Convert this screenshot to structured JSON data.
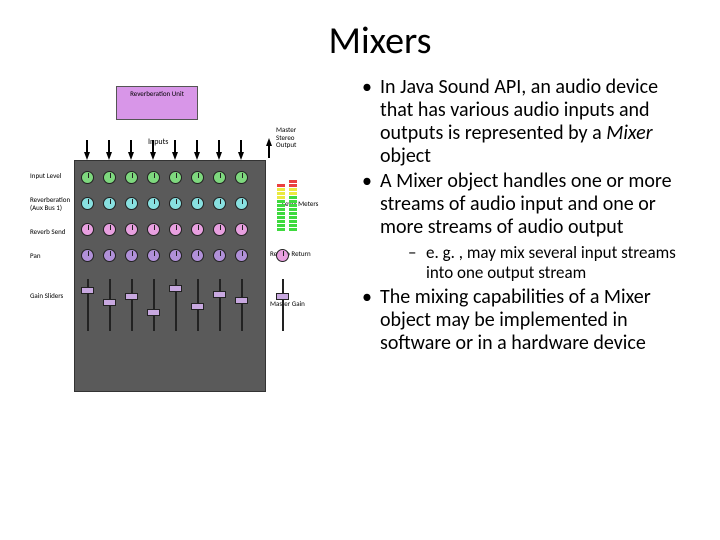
{
  "title": "Mixers",
  "bullets": {
    "b1_pre": "In Java Sound API, an audio device that has various audio inputs and outputs is represented by a ",
    "b1_em": "Mixer",
    "b1_post": " object",
    "b2": "A Mixer object handles one or more streams of audio input and one or more streams of audio output",
    "b2_sub": "e. g. , may mix several input streams into one output stream",
    "b3": "The mixing capabilities of a Mixer object may be implemented in software or in a hardware device"
  },
  "diagram": {
    "reverb_label": "Reverberation Unit",
    "inputs_label": "Inputs",
    "master_output_label": "Master Stereo Output",
    "row_labels": {
      "input_level": "Input Level",
      "reverb": "Reverberation (Aux Bus 1)",
      "reverb_send": "Reverb Send",
      "pan": "Pan",
      "gain": "Gain Sliders"
    },
    "right_labels": {
      "level_meters": "Level Meters",
      "reverb_return": "Reverb Return",
      "master_gain": "Master Gain"
    },
    "colors": {
      "panel_bg": "#5a5a5a",
      "reverb_bg": "#d896e8",
      "knob_green": "#7ed87e",
      "knob_cyan": "#88e0e0",
      "knob_pink": "#e8a0e0",
      "knob_purple": "#b090d8",
      "meter_green": "#3eda3e",
      "meter_yellow": "#eaea40",
      "meter_red": "#ea4040"
    },
    "channels": 8,
    "fader_positions": [
      8,
      20,
      14,
      30,
      6,
      24,
      12,
      18
    ],
    "meters": [
      [
        "g",
        "g",
        "g",
        "g",
        "g",
        "g",
        "g",
        "g",
        "y",
        "y",
        "y",
        "r"
      ],
      [
        "g",
        "g",
        "g",
        "g",
        "g",
        "g",
        "g",
        "g",
        "g",
        "y",
        "y",
        "r",
        "r"
      ]
    ]
  }
}
